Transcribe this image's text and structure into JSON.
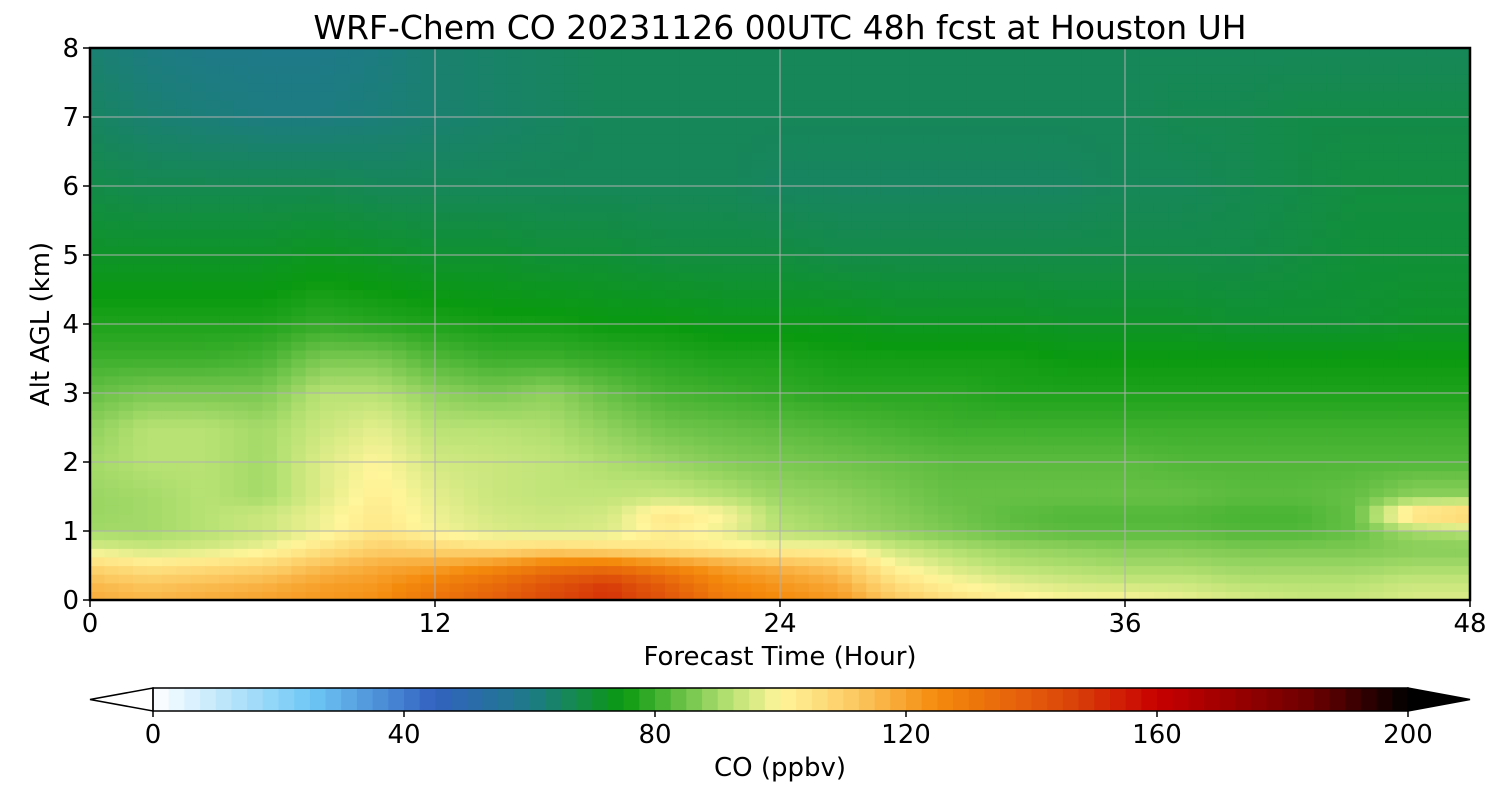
{
  "chart_data": {
    "type": "heatmap",
    "title": "WRF-Chem CO  20231126 00UTC 48h fcst at Houston UH",
    "xlabel": "Forecast Time (Hour)",
    "ylabel": "Alt AGL (km)",
    "xlim": [
      0,
      48
    ],
    "ylim": [
      0,
      8
    ],
    "xticks": [
      0,
      12,
      24,
      36,
      48
    ],
    "yticks": [
      0,
      1,
      2,
      3,
      4,
      5,
      6,
      7,
      8
    ],
    "grid": true,
    "colorbar": {
      "label": "CO  (ppbv)",
      "range": [
        0,
        200
      ],
      "ticks": [
        0,
        40,
        80,
        120,
        160,
        200
      ],
      "extend": "both",
      "stops": [
        {
          "value": 0,
          "color": "#ffffff"
        },
        {
          "value": 25,
          "color": "#6ec8f5"
        },
        {
          "value": 45,
          "color": "#3262c0"
        },
        {
          "value": 60,
          "color": "#1e7a88"
        },
        {
          "value": 75,
          "color": "#0a9a10"
        },
        {
          "value": 92,
          "color": "#b8e274"
        },
        {
          "value": 100,
          "color": "#fff59a"
        },
        {
          "value": 112,
          "color": "#fcc860"
        },
        {
          "value": 125,
          "color": "#f48a0c"
        },
        {
          "value": 145,
          "color": "#dc4a0a"
        },
        {
          "value": 160,
          "color": "#c80000"
        },
        {
          "value": 185,
          "color": "#6a0000"
        },
        {
          "value": 200,
          "color": "#000000"
        }
      ]
    },
    "x": [
      0,
      2,
      4,
      6,
      8,
      10,
      12,
      14,
      16,
      18,
      20,
      22,
      24,
      26,
      28,
      30,
      32,
      34,
      36,
      38,
      40,
      42,
      44,
      46,
      48
    ],
    "y": [
      0,
      0.25,
      0.5,
      0.75,
      1,
      1.25,
      1.5,
      2,
      2.5,
      3,
      3.5,
      4,
      5,
      6,
      7,
      8
    ],
    "z": [
      [
        118,
        116,
        118,
        120,
        122,
        124,
        132,
        138,
        145,
        150,
        142,
        130,
        125,
        122,
        112,
        106,
        102,
        100,
        100,
        98,
        96,
        94,
        94,
        96,
        96
      ],
      [
        115,
        112,
        114,
        116,
        120,
        122,
        128,
        134,
        142,
        148,
        138,
        126,
        122,
        118,
        106,
        100,
        97,
        95,
        94,
        94,
        92,
        92,
        92,
        94,
        94
      ],
      [
        108,
        104,
        106,
        108,
        114,
        118,
        120,
        124,
        130,
        132,
        126,
        120,
        116,
        112,
        100,
        95,
        92,
        91,
        90,
        90,
        89,
        89,
        89,
        90,
        90
      ],
      [
        96,
        94,
        95,
        98,
        104,
        110,
        108,
        106,
        108,
        106,
        104,
        102,
        100,
        100,
        94,
        91,
        89,
        88,
        87,
        87,
        86,
        86,
        86,
        87,
        87
      ],
      [
        90,
        90,
        92,
        94,
        98,
        104,
        99,
        96,
        95,
        96,
        102,
        98,
        92,
        90,
        88,
        86,
        84,
        83,
        83,
        83,
        82,
        82,
        84,
        90,
        92
      ],
      [
        89,
        90,
        92,
        94,
        98,
        103,
        98,
        95,
        94,
        95,
        104,
        100,
        91,
        89,
        87,
        85,
        83,
        82,
        82,
        82,
        81,
        81,
        84,
        108,
        112
      ],
      [
        89,
        90,
        92,
        90,
        96,
        102,
        97,
        94,
        93,
        93,
        94,
        92,
        89,
        88,
        86,
        84,
        84,
        84,
        84,
        84,
        83,
        83,
        84,
        88,
        88
      ],
      [
        90,
        92,
        92,
        90,
        96,
        100,
        95,
        94,
        93,
        91,
        89,
        87,
        86,
        85,
        84,
        83,
        83,
        83,
        83,
        82,
        82,
        82,
        82,
        82,
        82
      ],
      [
        88,
        92,
        92,
        90,
        94,
        97,
        92,
        92,
        91,
        88,
        85,
        84,
        83,
        82,
        81,
        80,
        80,
        80,
        80,
        80,
        80,
        80,
        80,
        80,
        80
      ],
      [
        84,
        86,
        86,
        86,
        92,
        92,
        88,
        86,
        88,
        84,
        81,
        80,
        79,
        78,
        78,
        78,
        77,
        77,
        77,
        77,
        77,
        77,
        77,
        77,
        77
      ],
      [
        80,
        80,
        80,
        81,
        86,
        86,
        82,
        80,
        80,
        79,
        78,
        77,
        77,
        76,
        76,
        76,
        76,
        75,
        75,
        75,
        75,
        75,
        75,
        75,
        75
      ],
      [
        77,
        77,
        77,
        77,
        79,
        78,
        77,
        76,
        76,
        75,
        75,
        74,
        74,
        74,
        73,
        73,
        73,
        72,
        72,
        72,
        71,
        71,
        71,
        72,
        72
      ],
      [
        72,
        72,
        72,
        72,
        73,
        72,
        71,
        71,
        70,
        70,
        69,
        69,
        69,
        68,
        68,
        68,
        68,
        68,
        68,
        68,
        68,
        69,
        70,
        70,
        70
      ],
      [
        68,
        67,
        67,
        67,
        67,
        66,
        66,
        66,
        66,
        66,
        66,
        66,
        65,
        65,
        65,
        65,
        65,
        65,
        66,
        66,
        67,
        68,
        69,
        69,
        69
      ],
      [
        65,
        63,
        62,
        61,
        61,
        62,
        63,
        64,
        65,
        66,
        66,
        66,
        66,
        66,
        66,
        66,
        66,
        66,
        66,
        67,
        67,
        68,
        68,
        68,
        68
      ],
      [
        63,
        61,
        60,
        60,
        60,
        61,
        63,
        64,
        65,
        66,
        66,
        66,
        66,
        66,
        66,
        66,
        66,
        66,
        66,
        66,
        66,
        66,
        66,
        66,
        66
      ]
    ]
  }
}
